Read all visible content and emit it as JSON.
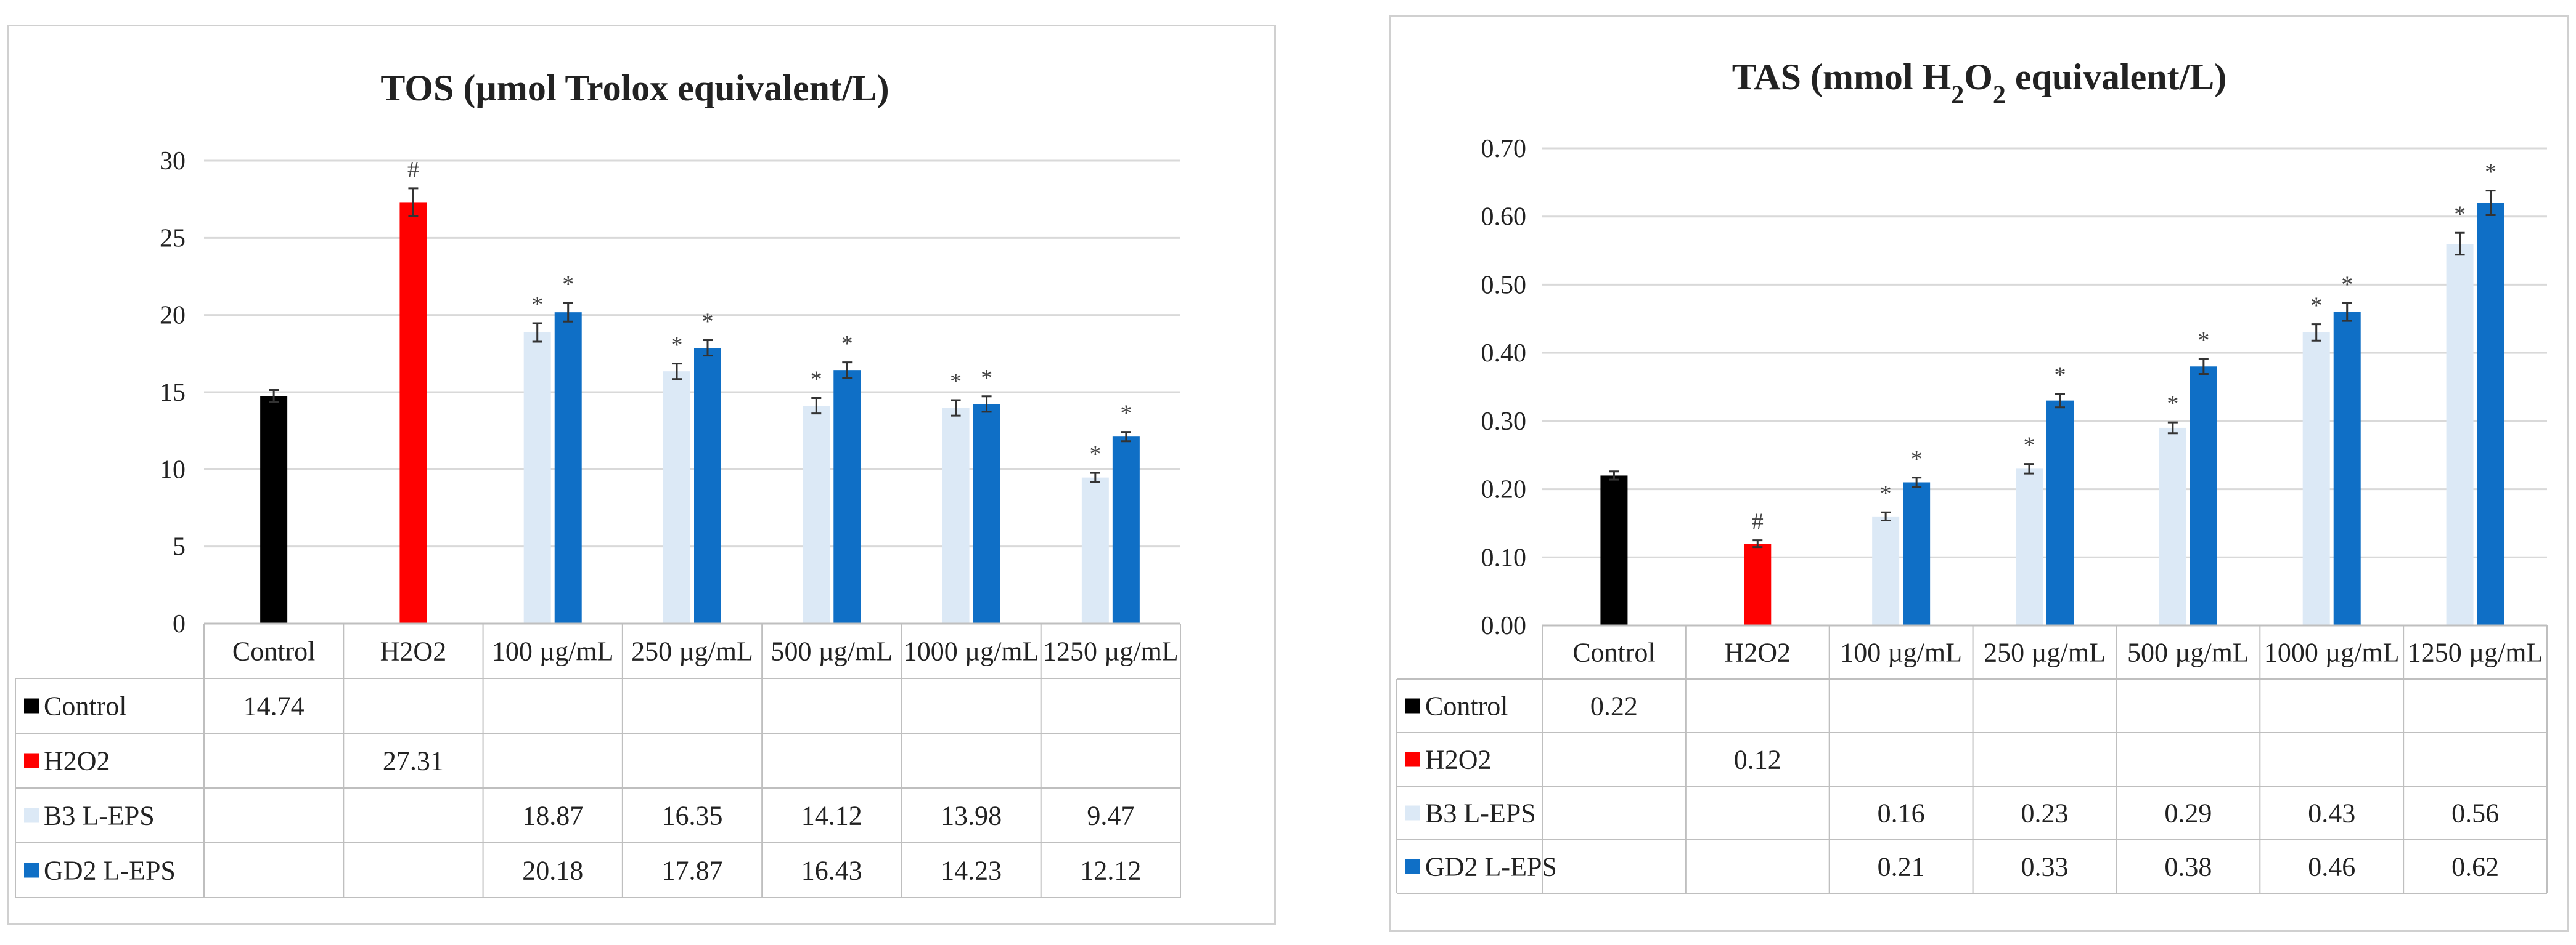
{
  "colors": {
    "control": "#000000",
    "h2o2": "#ff0000",
    "b3": "#dce9f6",
    "gd2": "#0f6fc6",
    "grid": "#d9d9d9",
    "border": "#bfbfbf",
    "error": "#333333"
  },
  "chart_data": [
    {
      "id": "tos",
      "type": "bar",
      "title": "TOS (µmol Trolox equivalent/L)",
      "title_parts": {
        "main": "TOS (µmol Trolox equivalent/L)",
        "sub": "",
        "tail": ""
      },
      "xlabel": "",
      "ylabel": "",
      "ylim": [
        0,
        30
      ],
      "yticks": [
        "0",
        "5",
        "10",
        "15",
        "20",
        "25",
        "30"
      ],
      "ytick_values": [
        0,
        5,
        10,
        15,
        20,
        25,
        30
      ],
      "categories": [
        "Control",
        "H2O2",
        "100 µg/mL",
        "250 µg/mL",
        "500 µg/mL",
        "1000 µg/mL",
        "1250 µg/mL"
      ],
      "legend_position": "data-table below axis",
      "grid": true,
      "series": [
        {
          "name": "Control",
          "color_key": "control",
          "values": [
            14.74,
            null,
            null,
            null,
            null,
            null,
            null
          ],
          "labels": [
            "14.74",
            "",
            "",
            "",
            "",
            "",
            ""
          ],
          "errors": [
            0.4,
            null,
            null,
            null,
            null,
            null,
            null
          ],
          "marks": [
            "",
            "",
            "",
            "",
            "",
            "",
            ""
          ]
        },
        {
          "name": "H2O2",
          "color_key": "h2o2",
          "values": [
            null,
            27.31,
            null,
            null,
            null,
            null,
            null
          ],
          "labels": [
            "",
            "27.31",
            "",
            "",
            "",
            "",
            ""
          ],
          "errors": [
            null,
            0.9,
            null,
            null,
            null,
            null,
            null
          ],
          "marks": [
            "",
            "#",
            "",
            "",
            "",
            "",
            ""
          ]
        },
        {
          "name": "B3 L-EPS",
          "color_key": "b3",
          "values": [
            null,
            null,
            18.87,
            16.35,
            14.12,
            13.98,
            9.47
          ],
          "labels": [
            "",
            "",
            "18.87",
            "16.35",
            "14.12",
            "13.98",
            "9.47"
          ],
          "errors": [
            null,
            null,
            0.6,
            0.5,
            0.5,
            0.5,
            0.3
          ],
          "marks": [
            "",
            "",
            "*",
            "*",
            "*",
            "*",
            "*"
          ]
        },
        {
          "name": "GD2 L-EPS",
          "color_key": "gd2",
          "values": [
            null,
            null,
            20.18,
            17.87,
            16.43,
            14.23,
            12.12
          ],
          "labels": [
            "",
            "",
            "20.18",
            "17.87",
            "16.43",
            "14.23",
            "12.12"
          ],
          "errors": [
            null,
            null,
            0.6,
            0.5,
            0.5,
            0.5,
            0.3
          ],
          "marks": [
            "",
            "",
            "*",
            "*",
            "*",
            "*",
            "*"
          ]
        }
      ]
    },
    {
      "id": "tas",
      "type": "bar",
      "title": "TAS  (mmol H2O2 equivalent/L)",
      "title_parts": {
        "main": "TAS  (mmol H",
        "sub": "2",
        "mid": "O",
        "sub2": "2",
        "tail": " equivalent/L)"
      },
      "xlabel": "",
      "ylabel": "",
      "ylim": [
        0,
        0.7
      ],
      "yticks": [
        "0.00",
        "0.10",
        "0.20",
        "0.30",
        "0.40",
        "0.50",
        "0.60",
        "0.70"
      ],
      "ytick_values": [
        0,
        0.1,
        0.2,
        0.3,
        0.4,
        0.5,
        0.6,
        0.7
      ],
      "categories": [
        "Control",
        "H2O2",
        "100 µg/mL",
        "250 µg/mL",
        "500 µg/mL",
        "1000 µg/mL",
        "1250 µg/mL"
      ],
      "legend_position": "data-table below axis",
      "grid": true,
      "series": [
        {
          "name": "Control",
          "color_key": "control",
          "values": [
            0.22,
            null,
            null,
            null,
            null,
            null,
            null
          ],
          "labels": [
            "0.22",
            "",
            "",
            "",
            "",
            "",
            ""
          ],
          "errors": [
            0.006,
            null,
            null,
            null,
            null,
            null,
            null
          ],
          "marks": [
            "",
            "",
            "",
            "",
            "",
            "",
            ""
          ]
        },
        {
          "name": "H2O2",
          "color_key": "h2o2",
          "values": [
            null,
            0.12,
            null,
            null,
            null,
            null,
            null
          ],
          "labels": [
            "",
            "0.12",
            "",
            "",
            "",
            "",
            ""
          ],
          "errors": [
            null,
            0.005,
            null,
            null,
            null,
            null,
            null
          ],
          "marks": [
            "",
            "#",
            "",
            "",
            "",
            "",
            ""
          ]
        },
        {
          "name": "B3 L-EPS",
          "color_key": "b3",
          "values": [
            null,
            null,
            0.16,
            0.23,
            0.29,
            0.43,
            0.56
          ],
          "labels": [
            "",
            "",
            "0.16",
            "0.23",
            "0.29",
            "0.43",
            "0.56"
          ],
          "errors": [
            null,
            null,
            0.006,
            0.007,
            0.008,
            0.012,
            0.016
          ],
          "marks": [
            "",
            "",
            "*",
            "*",
            "*",
            "*",
            "*"
          ]
        },
        {
          "name": "GD2 L-EPS",
          "color_key": "gd2",
          "values": [
            null,
            null,
            0.21,
            0.33,
            0.38,
            0.46,
            0.62
          ],
          "labels": [
            "",
            "",
            "0.21",
            "0.33",
            "0.38",
            "0.46",
            "0.62"
          ],
          "errors": [
            null,
            null,
            0.007,
            0.01,
            0.011,
            0.013,
            0.018
          ],
          "marks": [
            "",
            "",
            "*",
            "*",
            "*",
            "*",
            "*"
          ]
        }
      ]
    }
  ]
}
